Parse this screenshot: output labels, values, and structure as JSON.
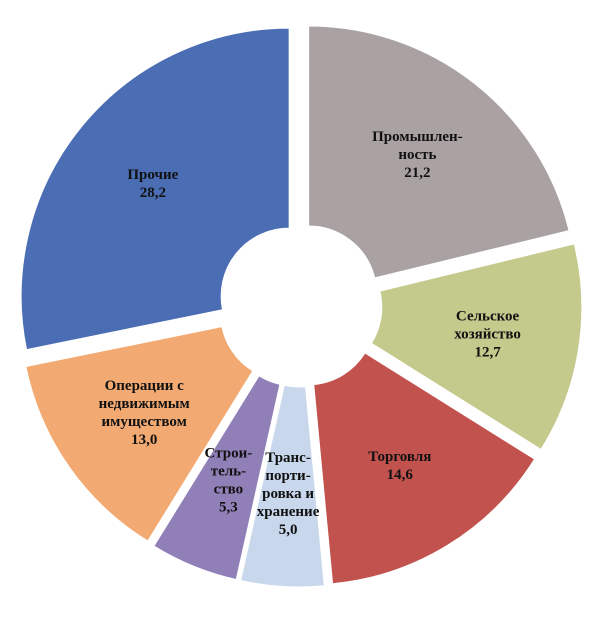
{
  "chart_data": {
    "type": "pie",
    "categories": [
      [
        "Промышлен-",
        "ность"
      ],
      [
        "Сельское",
        "хозяйство"
      ],
      [
        "Торговля"
      ],
      [
        "Транс-",
        "порти-",
        "ровка и",
        "хранение"
      ],
      [
        "Строи-",
        "тель-",
        "ство"
      ],
      [
        "Операции с",
        "недвижимым",
        "имуществом"
      ],
      [
        "Прочие"
      ]
    ],
    "values": [
      21.2,
      12.7,
      14.6,
      5.0,
      5.3,
      13.0,
      28.2
    ],
    "value_labels": [
      "21,2",
      "12,7",
      "14,6",
      "5,0",
      "5,3",
      "13,0",
      "28,2"
    ],
    "colors": [
      "#aaa2a2",
      "#c4c98c",
      "#c2524e",
      "#c8d7ec",
      "#9180b8",
      "#f2aa72",
      "#4a6db4"
    ]
  }
}
